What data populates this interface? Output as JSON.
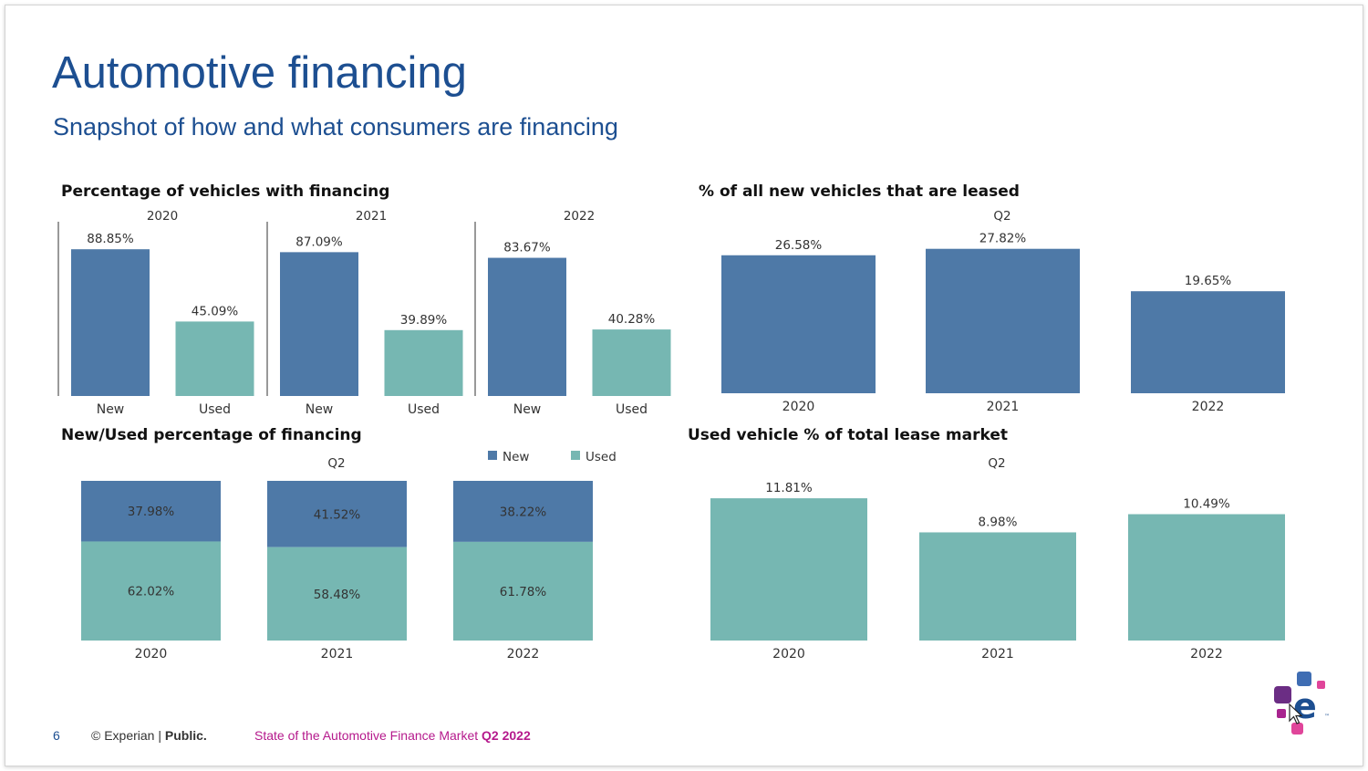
{
  "slide": {
    "title": "Automotive financing",
    "subtitle": "Snapshot of how and what consumers are financing"
  },
  "colors": {
    "new": "#4e79a7",
    "used": "#76b7b2",
    "title_blue": "#1d4f91",
    "footer_magenta": "#b5198c"
  },
  "chart_data": [
    {
      "id": "financing",
      "type": "bar",
      "title": "Percentage of vehicles with financing",
      "groups": [
        "2020",
        "2021",
        "2022"
      ],
      "categories": [
        "New",
        "Used"
      ],
      "series": [
        {
          "values": [
            88.85,
            45.09
          ]
        },
        {
          "values": [
            87.09,
            39.89
          ]
        },
        {
          "values": [
            83.67,
            40.28
          ]
        }
      ],
      "labels": [
        [
          "88.85%",
          "45.09%"
        ],
        [
          "87.09%",
          "39.89%"
        ],
        [
          "83.67%",
          "40.28%"
        ]
      ],
      "ylim": [
        0,
        100
      ],
      "grid": false
    },
    {
      "id": "leased",
      "type": "bar",
      "title": "% of all new vehicles that are leased",
      "header": "Q2",
      "categories": [
        "2020",
        "2021",
        "2022"
      ],
      "values": [
        26.58,
        27.82,
        19.65
      ],
      "labels": [
        "26.58%",
        "27.82%",
        "19.65%"
      ],
      "ylim": [
        0,
        30
      ],
      "grid": false
    },
    {
      "id": "mix",
      "type": "bar",
      "stacked": true,
      "title": "New/Used percentage of financing",
      "header": "Q2",
      "categories": [
        "2020",
        "2021",
        "2022"
      ],
      "series": [
        {
          "name": "New",
          "values": [
            37.98,
            41.52,
            38.22
          ],
          "labels": [
            "37.98%",
            "41.52%",
            "38.22%"
          ]
        },
        {
          "name": "Used",
          "values": [
            62.02,
            58.48,
            61.78
          ],
          "labels": [
            "62.02%",
            "58.48%",
            "61.78%"
          ]
        }
      ],
      "legend": "top-right",
      "ylim": [
        0,
        100
      ],
      "grid": false
    },
    {
      "id": "usedlease",
      "type": "bar",
      "title": "Used vehicle % of total lease market",
      "header": "Q2",
      "categories": [
        "2020",
        "2021",
        "2022"
      ],
      "values": [
        11.81,
        8.98,
        10.49
      ],
      "labels": [
        "11.81%",
        "8.98%",
        "10.49%"
      ],
      "ylim": [
        0,
        12
      ],
      "grid": false
    }
  ],
  "footer": {
    "page_number": "6",
    "copyright": "© Experian | ",
    "classification": "Public.",
    "report_name": "State of the Automotive Finance Market ",
    "quarter": "Q2 2022"
  }
}
